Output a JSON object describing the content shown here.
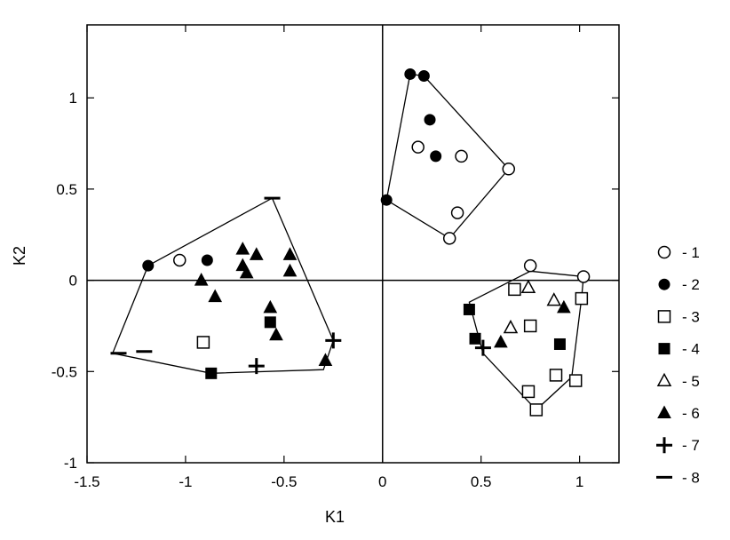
{
  "chart_data": {
    "type": "scatter",
    "title": "",
    "xlabel": "K1",
    "ylabel": "K2",
    "xlim": [
      -1.5,
      1.2
    ],
    "ylim": [
      -1,
      1.4
    ],
    "xticks": [
      -1.5,
      -1,
      -0.5,
      0,
      0.5,
      1
    ],
    "xtick_labels": [
      "-1.5",
      "-1",
      "-0.5",
      "0",
      "0.5",
      "1"
    ],
    "yticks": [
      -1,
      -0.5,
      0,
      0.5,
      1
    ],
    "ytick_labels": [
      "-1",
      "-0.5",
      "0",
      "0.5",
      "1"
    ],
    "grid": false,
    "reference_lines": {
      "x": 0,
      "y": 0
    },
    "legend_position": "right",
    "series": [
      {
        "name": "- 1",
        "marker": "circle-open",
        "points": [
          [
            -1.03,
            0.11
          ],
          [
            0.18,
            0.73
          ],
          [
            0.4,
            0.68
          ],
          [
            0.64,
            0.61
          ],
          [
            0.38,
            0.37
          ],
          [
            0.34,
            0.23
          ],
          [
            0.75,
            0.08
          ],
          [
            1.02,
            0.02
          ]
        ]
      },
      {
        "name": "- 2",
        "marker": "circle-filled",
        "points": [
          [
            -1.19,
            0.08
          ],
          [
            -0.89,
            0.11
          ],
          [
            0.14,
            1.13
          ],
          [
            0.21,
            1.12
          ],
          [
            0.24,
            0.88
          ],
          [
            0.27,
            0.68
          ],
          [
            0.02,
            0.44
          ]
        ]
      },
      {
        "name": "- 3",
        "marker": "square-open",
        "points": [
          [
            -0.91,
            -0.34
          ],
          [
            0.67,
            -0.05
          ],
          [
            0.75,
            -0.25
          ],
          [
            1.01,
            -0.1
          ],
          [
            0.74,
            -0.61
          ],
          [
            0.78,
            -0.71
          ],
          [
            0.88,
            -0.52
          ],
          [
            0.98,
            -0.55
          ]
        ]
      },
      {
        "name": "- 4",
        "marker": "square-filled",
        "points": [
          [
            -0.87,
            -0.51
          ],
          [
            -0.57,
            -0.23
          ],
          [
            0.44,
            -0.16
          ],
          [
            0.47,
            -0.32
          ],
          [
            0.9,
            -0.35
          ]
        ]
      },
      {
        "name": "- 5",
        "marker": "triangle-open",
        "points": [
          [
            0.74,
            -0.04
          ],
          [
            0.65,
            -0.26
          ],
          [
            0.87,
            -0.11
          ]
        ]
      },
      {
        "name": "- 6",
        "marker": "triangle-filled",
        "points": [
          [
            -0.92,
            0.0
          ],
          [
            -0.85,
            -0.09
          ],
          [
            -0.71,
            0.17
          ],
          [
            -0.71,
            0.08
          ],
          [
            -0.69,
            0.04
          ],
          [
            -0.64,
            0.14
          ],
          [
            -0.57,
            -0.15
          ],
          [
            -0.54,
            -0.3
          ],
          [
            -0.47,
            0.14
          ],
          [
            -0.47,
            0.05
          ],
          [
            -0.29,
            -0.44
          ],
          [
            0.6,
            -0.34
          ],
          [
            0.92,
            -0.15
          ]
        ]
      },
      {
        "name": "- 7",
        "marker": "plus",
        "points": [
          [
            -0.25,
            -0.33
          ],
          [
            -0.64,
            -0.47
          ],
          [
            0.51,
            -0.37
          ]
        ]
      },
      {
        "name": "- 8",
        "marker": "dash",
        "points": [
          [
            -0.56,
            0.45
          ],
          [
            -1.34,
            -0.4
          ],
          [
            -1.21,
            -0.39
          ]
        ]
      }
    ],
    "hulls": [
      [
        [
          -1.19,
          0.08
        ],
        [
          -0.56,
          0.45
        ],
        [
          -0.25,
          -0.33
        ],
        [
          -0.3,
          -0.49
        ],
        [
          -0.87,
          -0.51
        ],
        [
          -1.37,
          -0.4
        ]
      ],
      [
        [
          0.14,
          1.13
        ],
        [
          0.21,
          1.12
        ],
        [
          0.64,
          0.61
        ],
        [
          0.34,
          0.23
        ],
        [
          0.02,
          0.44
        ]
      ],
      [
        [
          0.44,
          -0.12
        ],
        [
          0.75,
          0.05
        ],
        [
          1.02,
          0.02
        ],
        [
          1.01,
          -0.1
        ],
        [
          0.96,
          -0.53
        ],
        [
          0.78,
          -0.71
        ],
        [
          0.51,
          -0.4
        ]
      ]
    ]
  }
}
